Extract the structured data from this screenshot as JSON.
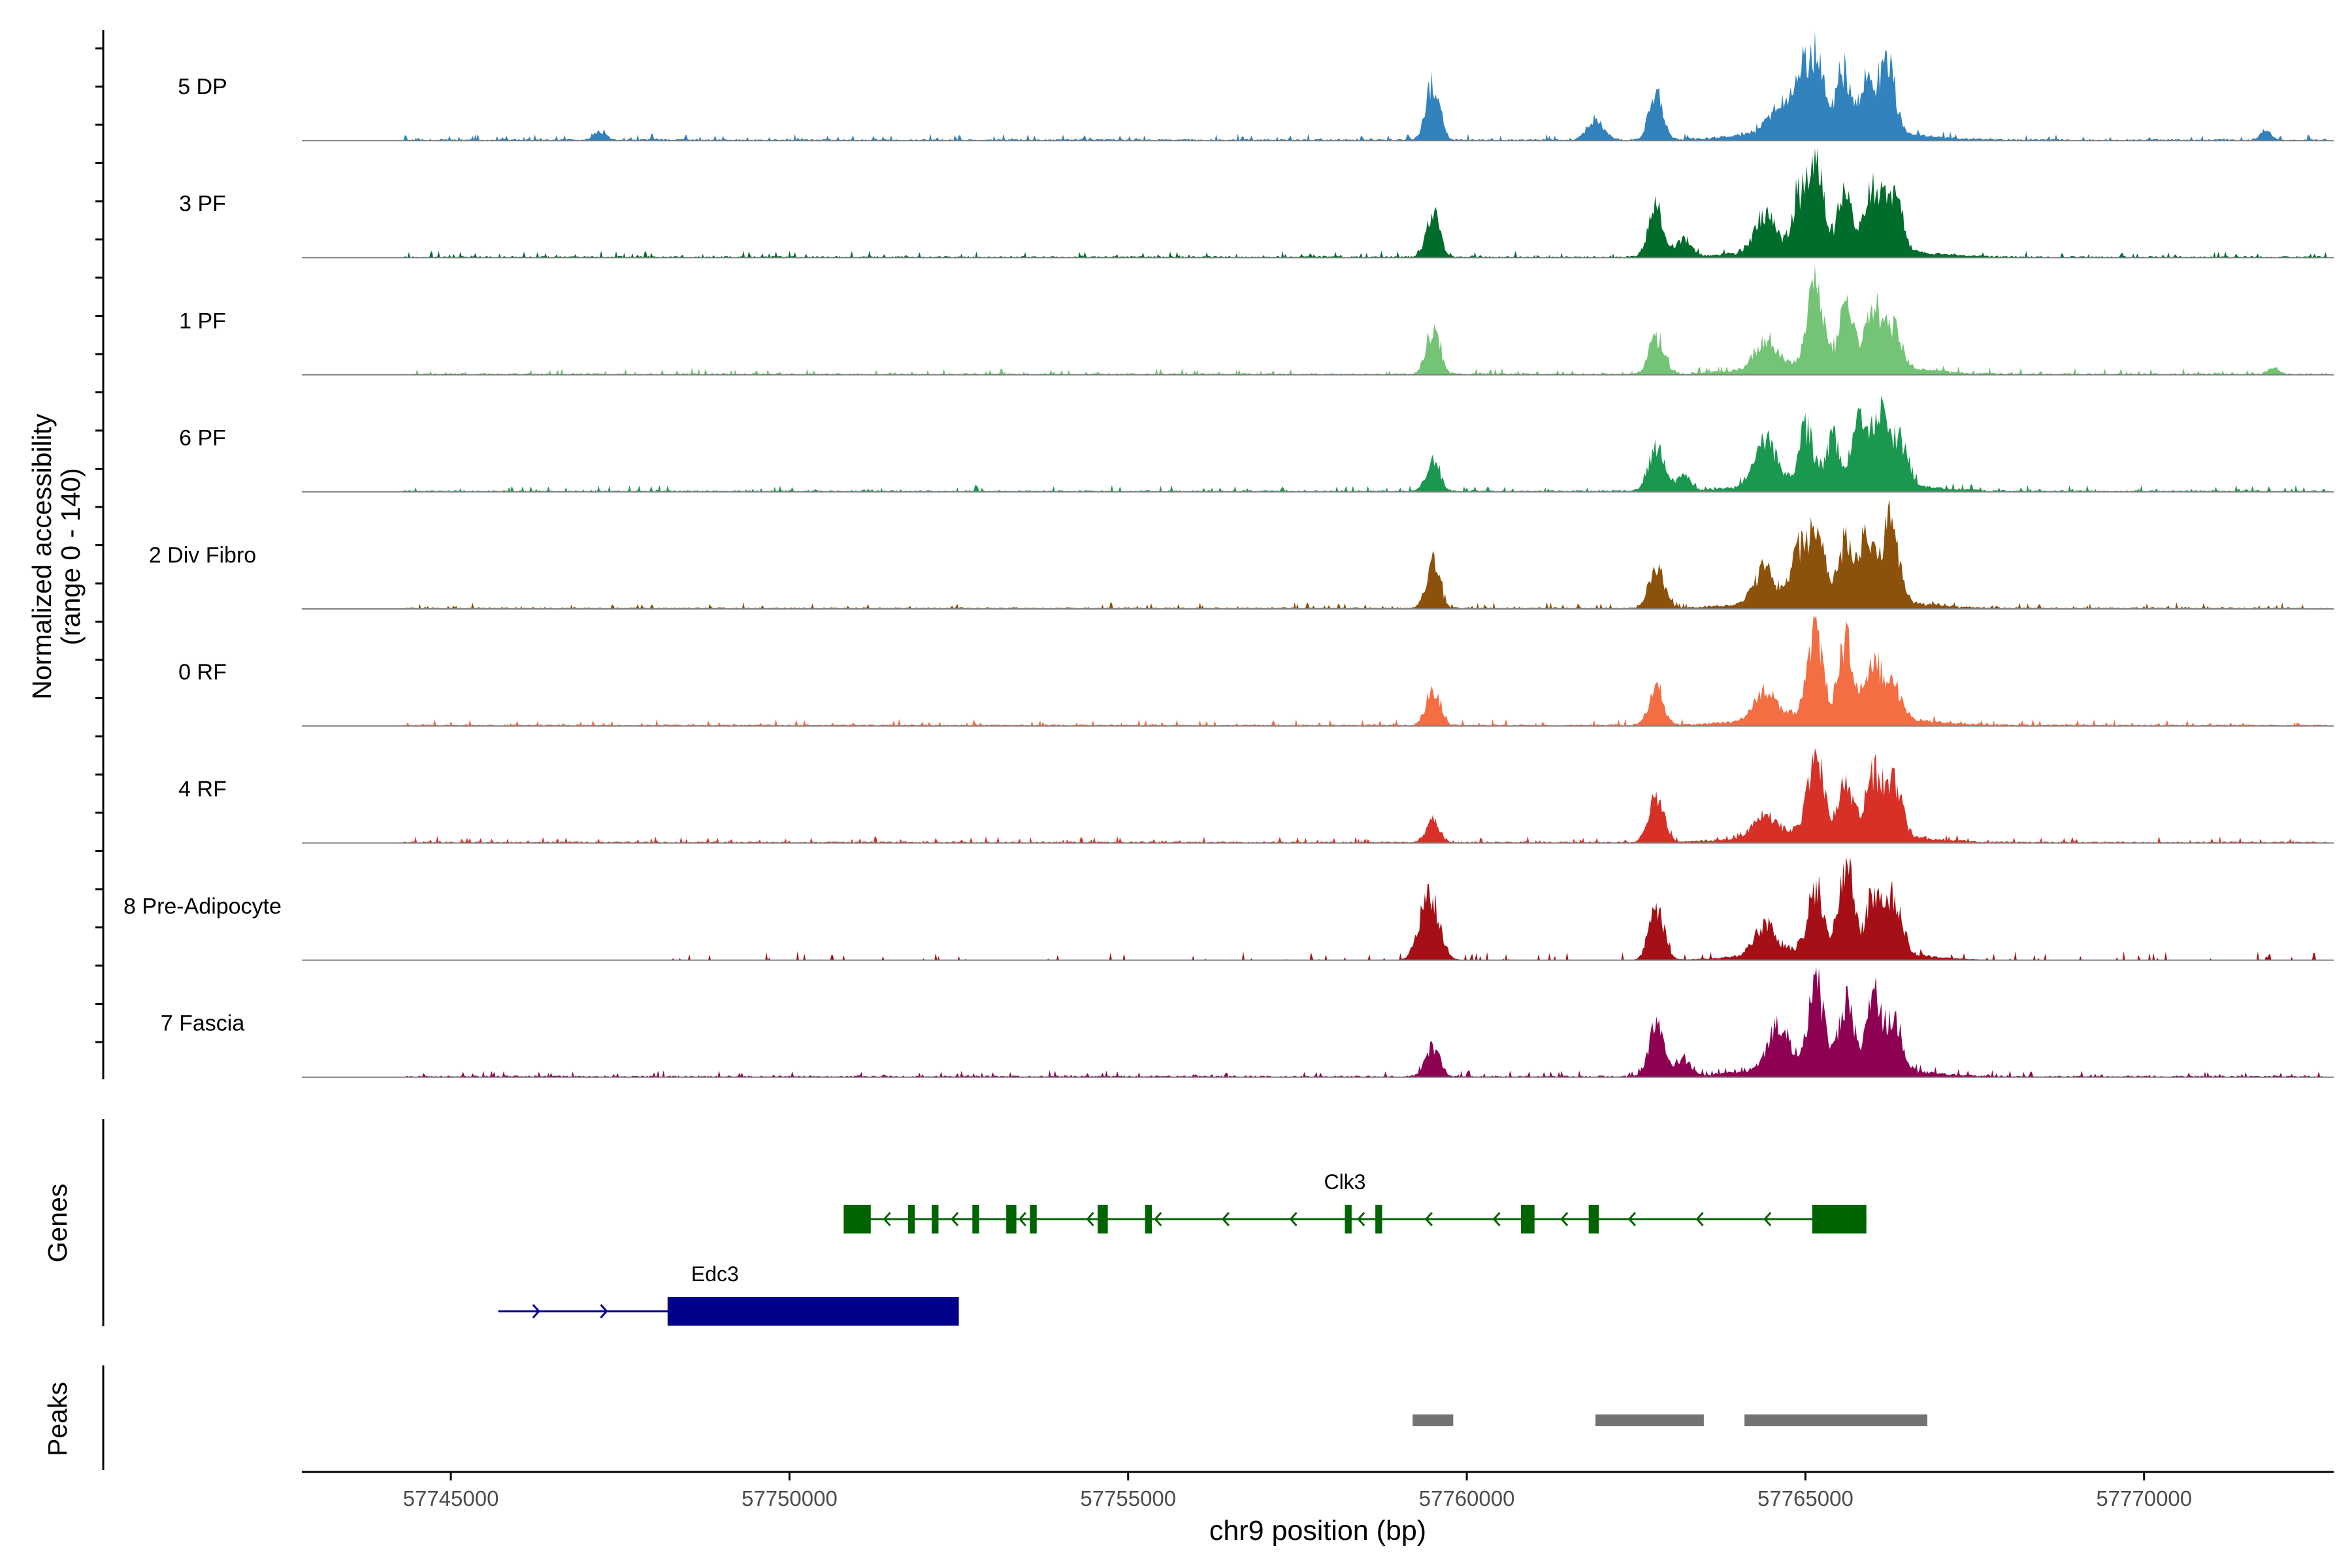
{
  "chart_data": {
    "type": "area",
    "title": "",
    "ylabel": "Normalized accessibility",
    "ylabel_range": "(range 0 - 140)",
    "ylim": [
      0,
      140
    ],
    "xlabel": "chr9 position (bp)",
    "xlim": [
      57742800,
      57772800
    ],
    "xticks": [
      57745000,
      57750000,
      57755000,
      57760000,
      57765000,
      57770000
    ],
    "xtick_labels": [
      "57745000",
      "57750000",
      "57755000",
      "57760000",
      "57765000",
      "57770000"
    ],
    "genes_label": "Genes",
    "peaks_label": "Peaks",
    "series": [
      {
        "name": "5 DP",
        "color": "#3182bd",
        "seed": 11,
        "peaks": [
          [
            57747200,
            15,
            80
          ],
          [
            57759500,
            95,
            100
          ],
          [
            57761900,
            35,
            120
          ],
          [
            57762800,
            80,
            100
          ],
          [
            57764600,
            40,
            150
          ],
          [
            57764900,
            85,
            100
          ],
          [
            57765150,
            128,
            110
          ],
          [
            57765550,
            95,
            100
          ],
          [
            57765900,
            75,
            100
          ],
          [
            57766200,
            126,
            110
          ],
          [
            57771800,
            15,
            80
          ]
        ],
        "start": 57744300,
        "end": 57772700
      },
      {
        "name": "3 PF",
        "color": "#006d2c",
        "seed": 23,
        "peaks": [
          [
            57759500,
            70,
            100
          ],
          [
            57762800,
            80,
            110
          ],
          [
            57763200,
            30,
            100
          ],
          [
            57764400,
            55,
            150
          ],
          [
            57764900,
            75,
            100
          ],
          [
            57765150,
            130,
            110
          ],
          [
            57765600,
            95,
            100
          ],
          [
            57766000,
            92,
            110
          ],
          [
            57766300,
            90,
            120
          ]
        ],
        "start": 57744300,
        "end": 57772700
      },
      {
        "name": "1 PF",
        "color": "#74c476",
        "seed": 37,
        "peaks": [
          [
            57759500,
            75,
            100
          ],
          [
            57762800,
            60,
            110
          ],
          [
            57764400,
            45,
            150
          ],
          [
            57765150,
            130,
            110
          ],
          [
            57765600,
            90,
            100
          ],
          [
            57766000,
            100,
            110
          ],
          [
            57766300,
            60,
            120
          ],
          [
            57771900,
            10,
            80
          ]
        ],
        "start": 57744300,
        "end": 57772700
      },
      {
        "name": "6 PF",
        "color": "#1a9850",
        "seed": 41,
        "peaks": [
          [
            57759500,
            50,
            100
          ],
          [
            57762800,
            75,
            110
          ],
          [
            57763200,
            25,
            100
          ],
          [
            57764400,
            75,
            150
          ],
          [
            57765000,
            85,
            100
          ],
          [
            57765400,
            65,
            100
          ],
          [
            57765800,
            95,
            110
          ],
          [
            57766100,
            110,
            120
          ],
          [
            57766400,
            70,
            120
          ]
        ],
        "start": 57744300,
        "end": 57772700
      },
      {
        "name": "2 Div Fibro",
        "color": "#8c510a",
        "seed": 53,
        "peaks": [
          [
            57759500,
            75,
            100
          ],
          [
            57762800,
            70,
            110
          ],
          [
            57764400,
            55,
            150
          ],
          [
            57764900,
            70,
            100
          ],
          [
            57765150,
            120,
            110
          ],
          [
            57765600,
            90,
            100
          ],
          [
            57765900,
            100,
            110
          ],
          [
            57766250,
            128,
            120
          ]
        ],
        "start": 57744300,
        "end": 57772700
      },
      {
        "name": "0 RF",
        "color": "#f46d43",
        "seed": 61,
        "peaks": [
          [
            57759500,
            62,
            100
          ],
          [
            57762800,
            60,
            110
          ],
          [
            57764400,
            45,
            150
          ],
          [
            57765150,
            128,
            110
          ],
          [
            57765600,
            115,
            100
          ],
          [
            57766000,
            95,
            110
          ],
          [
            57766300,
            50,
            120
          ]
        ],
        "start": 57744300,
        "end": 57772700
      },
      {
        "name": "4 RF",
        "color": "#d73027",
        "seed": 71,
        "peaks": [
          [
            57759500,
            35,
            100
          ],
          [
            57762800,
            80,
            110
          ],
          [
            57764400,
            40,
            150
          ],
          [
            57765150,
            125,
            110
          ],
          [
            57765600,
            75,
            100
          ],
          [
            57766000,
            95,
            110
          ],
          [
            57766300,
            90,
            120
          ]
        ],
        "start": 57744300,
        "end": 57772700
      },
      {
        "name": "8 Pre-Adipocyte",
        "color": "#a50f15",
        "seed": 83,
        "peaks": [
          [
            57759450,
            110,
            140
          ],
          [
            57762800,
            85,
            110
          ],
          [
            57764400,
            50,
            150
          ],
          [
            57765150,
            100,
            110
          ],
          [
            57765600,
            134,
            100
          ],
          [
            57766000,
            85,
            110
          ],
          [
            57766300,
            85,
            120
          ]
        ],
        "start": 57748000,
        "end": 57772600
      },
      {
        "name": "7 Fascia",
        "color": "#8e0152",
        "seed": 97,
        "peaks": [
          [
            57759500,
            50,
            100
          ],
          [
            57762800,
            85,
            110
          ],
          [
            57763200,
            30,
            100
          ],
          [
            57764600,
            70,
            150
          ],
          [
            57765150,
            135,
            110
          ],
          [
            57765600,
            100,
            100
          ],
          [
            57766000,
            110,
            110
          ],
          [
            57766300,
            80,
            120
          ]
        ],
        "start": 57744300,
        "end": 57772700
      }
    ],
    "genes": [
      {
        "name": "Clk3",
        "color": "#006400",
        "strand": "-",
        "start": 57750800,
        "end": 57765900,
        "label_x": 57758200,
        "exons": [
          [
            57750800,
            57751200,
            "thick"
          ],
          [
            57751750,
            57751850,
            "thin"
          ],
          [
            57752100,
            57752200,
            "thin"
          ],
          [
            57752700,
            57752800,
            "thin"
          ],
          [
            57753200,
            57753350,
            "thin"
          ],
          [
            57753550,
            57753650,
            "thin"
          ],
          [
            57754550,
            57754700,
            "thin"
          ],
          [
            57755250,
            57755350,
            "thin"
          ],
          [
            57758200,
            57758300,
            "thin"
          ],
          [
            57758650,
            57758750,
            "thin"
          ],
          [
            57760800,
            57761000,
            "thick"
          ],
          [
            57761800,
            57761950,
            "thin"
          ],
          [
            57765100,
            57765900,
            "thick"
          ]
        ]
      },
      {
        "name": "Edc3",
        "color": "#00008b",
        "strand": "+",
        "start": 57745700,
        "end": 57752500,
        "label_x": 57748900,
        "exons": [
          [
            57748200,
            57752500,
            "thick"
          ]
        ]
      }
    ],
    "peak_regions": [
      [
        57759200,
        57759800
      ],
      [
        57761900,
        57763500
      ],
      [
        57764100,
        57766800
      ]
    ]
  }
}
